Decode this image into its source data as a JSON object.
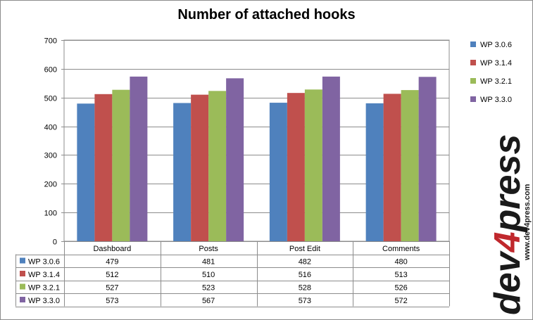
{
  "chart_data": {
    "type": "bar",
    "title": "Number of attached hooks",
    "categories": [
      "Dashboard",
      "Posts",
      "Post Edit",
      "Comments"
    ],
    "series": [
      {
        "name": "WP 3.0.6",
        "color": "#4F81BD",
        "values": [
          479,
          481,
          482,
          480
        ]
      },
      {
        "name": "WP 3.1.4",
        "color": "#C0504D",
        "values": [
          512,
          510,
          516,
          513
        ]
      },
      {
        "name": "WP 3.2.1",
        "color": "#9BBB59",
        "values": [
          527,
          523,
          528,
          526
        ]
      },
      {
        "name": "WP 3.3.0",
        "color": "#8064A2",
        "values": [
          573,
          567,
          573,
          572
        ]
      }
    ],
    "ylim": [
      0,
      700
    ],
    "yticks": [
      0,
      100,
      200,
      300,
      400,
      500,
      600,
      700
    ],
    "grid": true,
    "legend_position": "right",
    "data_table": true
  },
  "watermark": {
    "brand": "dev4press",
    "url": "www.dev4press.com",
    "colors": {
      "text": "#1a1a1a",
      "accent": "#c0282d"
    }
  }
}
